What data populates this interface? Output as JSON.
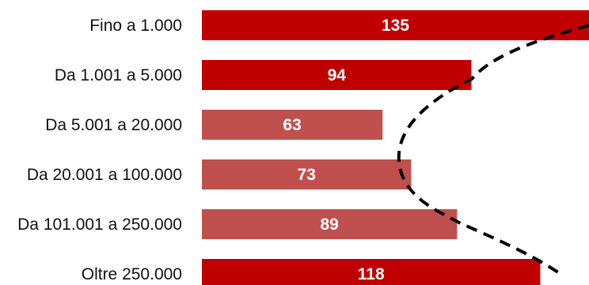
{
  "chart_data": {
    "type": "bar",
    "orientation": "horizontal",
    "categories": [
      "Fino a 1.000",
      "Da 1.001 a 5.000",
      "Da 5.001 a 20.000",
      "Da 20.001 a 100.000",
      "Da 101.001 a 250.000",
      "Oltre 250.000"
    ],
    "values": [
      135,
      94,
      63,
      73,
      89,
      118
    ],
    "value_labels": [
      "135",
      "94",
      "63",
      "73",
      "89",
      "118"
    ],
    "bar_colors": [
      "#c00000",
      "#c00000",
      "#c0504d",
      "#c0504d",
      "#c0504d",
      "#c00000"
    ],
    "xlim": [
      0,
      135
    ],
    "title": "",
    "xlabel": "",
    "ylabel": "",
    "grid": false,
    "legend": false,
    "annotations": [
      {
        "type": "dashed-curve",
        "color": "#000000"
      }
    ]
  }
}
